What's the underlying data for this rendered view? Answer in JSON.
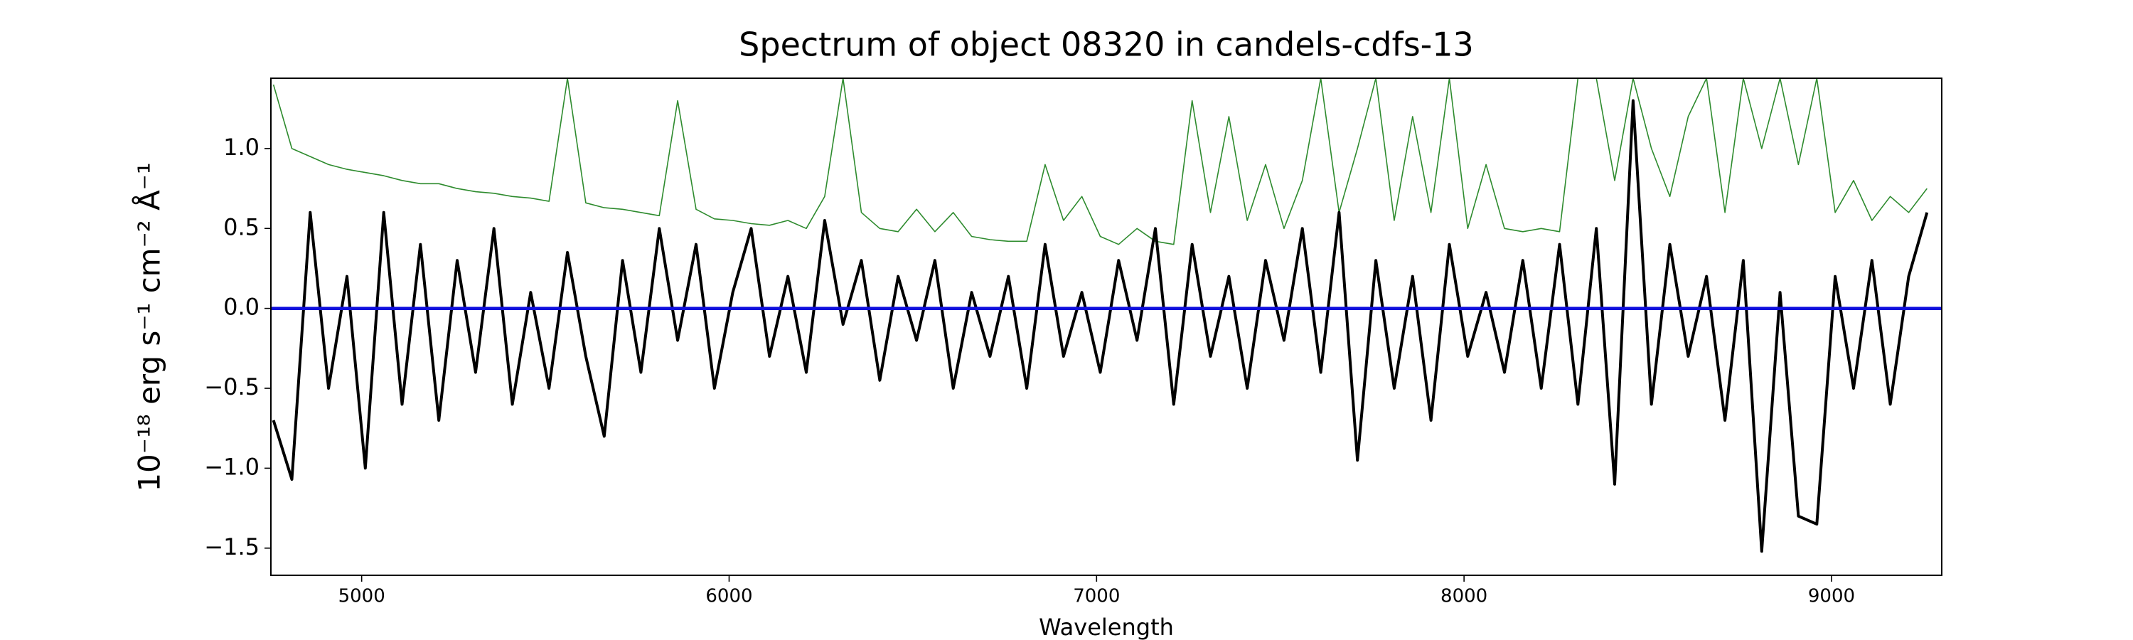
{
  "chart_data": {
    "type": "line",
    "title": "Spectrum of object 08320 in candels-cdfs-13",
    "x_label": "Wavelength",
    "y_label": "10⁻¹⁸ erg s⁻¹ cm⁻² Å⁻¹",
    "xlim": [
      4753,
      9300
    ],
    "ylim": [
      -1.67,
      1.44
    ],
    "xticks": [
      5000,
      6000,
      7000,
      8000,
      9000
    ],
    "yticks": [
      {
        "value": -1.5,
        "label": "−1.5"
      },
      {
        "value": -1.0,
        "label": "−1.0"
      },
      {
        "value": -0.5,
        "label": "−0.5"
      },
      {
        "value": 0.0,
        "label": "0.0"
      },
      {
        "value": 0.5,
        "label": "0.5"
      },
      {
        "value": 1.0,
        "label": "1.0"
      }
    ],
    "x": [
      4760,
      4810,
      4860,
      4910,
      4960,
      5010,
      5060,
      5110,
      5160,
      5210,
      5260,
      5310,
      5360,
      5410,
      5460,
      5510,
      5560,
      5610,
      5660,
      5710,
      5760,
      5810,
      5860,
      5910,
      5960,
      6010,
      6060,
      6110,
      6160,
      6210,
      6260,
      6310,
      6360,
      6410,
      6460,
      6510,
      6560,
      6610,
      6660,
      6710,
      6760,
      6810,
      6860,
      6910,
      6960,
      7010,
      7060,
      7110,
      7160,
      7210,
      7260,
      7310,
      7360,
      7410,
      7460,
      7510,
      7560,
      7610,
      7660,
      7710,
      7760,
      7810,
      7860,
      7910,
      7960,
      8010,
      8060,
      8110,
      8160,
      8210,
      8260,
      8310,
      8360,
      8410,
      8460,
      8510,
      8560,
      8610,
      8660,
      8710,
      8760,
      8810,
      8860,
      8910,
      8960,
      9010,
      9060,
      9110,
      9160,
      9210,
      9260
    ],
    "series": [
      {
        "color": "#2e8b2e",
        "width": 1.6,
        "values": [
          1.4,
          1.0,
          0.95,
          0.9,
          0.87,
          0.85,
          0.83,
          0.8,
          0.78,
          0.78,
          0.75,
          0.73,
          0.72,
          0.7,
          0.69,
          0.67,
          1.44,
          0.66,
          0.63,
          0.62,
          0.6,
          0.58,
          1.3,
          0.62,
          0.56,
          0.55,
          0.53,
          0.52,
          0.55,
          0.5,
          0.7,
          1.44,
          0.6,
          0.5,
          0.48,
          0.62,
          0.48,
          0.6,
          0.45,
          0.43,
          0.42,
          0.42,
          0.9,
          0.55,
          0.7,
          0.45,
          0.4,
          0.5,
          0.42,
          0.4,
          1.3,
          0.6,
          1.2,
          0.55,
          0.9,
          0.5,
          0.8,
          1.44,
          0.6,
          1.0,
          1.44,
          0.55,
          1.2,
          0.6,
          1.44,
          0.5,
          0.9,
          0.5,
          0.48,
          0.5,
          0.48,
          1.44,
          1.44,
          0.8,
          1.44,
          1.0,
          0.7,
          1.2,
          1.44,
          0.6,
          1.44,
          1.0,
          1.44,
          0.9,
          1.44,
          0.6,
          0.8,
          0.55,
          0.7,
          0.6,
          0.75
        ]
      },
      {
        "color": "#000000",
        "width": 4,
        "values": [
          -0.7,
          -1.07,
          0.6,
          -0.5,
          0.2,
          -1.0,
          0.6,
          -0.6,
          0.4,
          -0.7,
          0.3,
          -0.4,
          0.5,
          -0.6,
          0.1,
          -0.5,
          0.35,
          -0.3,
          -0.8,
          0.3,
          -0.4,
          0.5,
          -0.2,
          0.4,
          -0.5,
          0.1,
          0.5,
          -0.3,
          0.2,
          -0.4,
          0.55,
          -0.1,
          0.3,
          -0.45,
          0.2,
          -0.2,
          0.3,
          -0.5,
          0.1,
          -0.3,
          0.2,
          -0.5,
          0.4,
          -0.3,
          0.1,
          -0.4,
          0.3,
          -0.2,
          0.5,
          -0.6,
          0.4,
          -0.3,
          0.2,
          -0.5,
          0.3,
          -0.2,
          0.5,
          -0.4,
          0.6,
          -0.95,
          0.3,
          -0.5,
          0.2,
          -0.7,
          0.4,
          -0.3,
          0.1,
          -0.4,
          0.3,
          -0.5,
          0.4,
          -0.6,
          0.5,
          -1.1,
          1.3,
          -0.6,
          0.4,
          -0.3,
          0.2,
          -0.7,
          0.3,
          -1.52,
          0.1,
          -1.3,
          -1.35,
          0.2,
          -0.5,
          0.3,
          -0.6,
          0.2,
          0.6
        ]
      },
      {
        "color": "#1010dd",
        "width": 4.5,
        "x": [
          4753,
          9300
        ],
        "values": [
          0,
          0
        ]
      }
    ]
  }
}
